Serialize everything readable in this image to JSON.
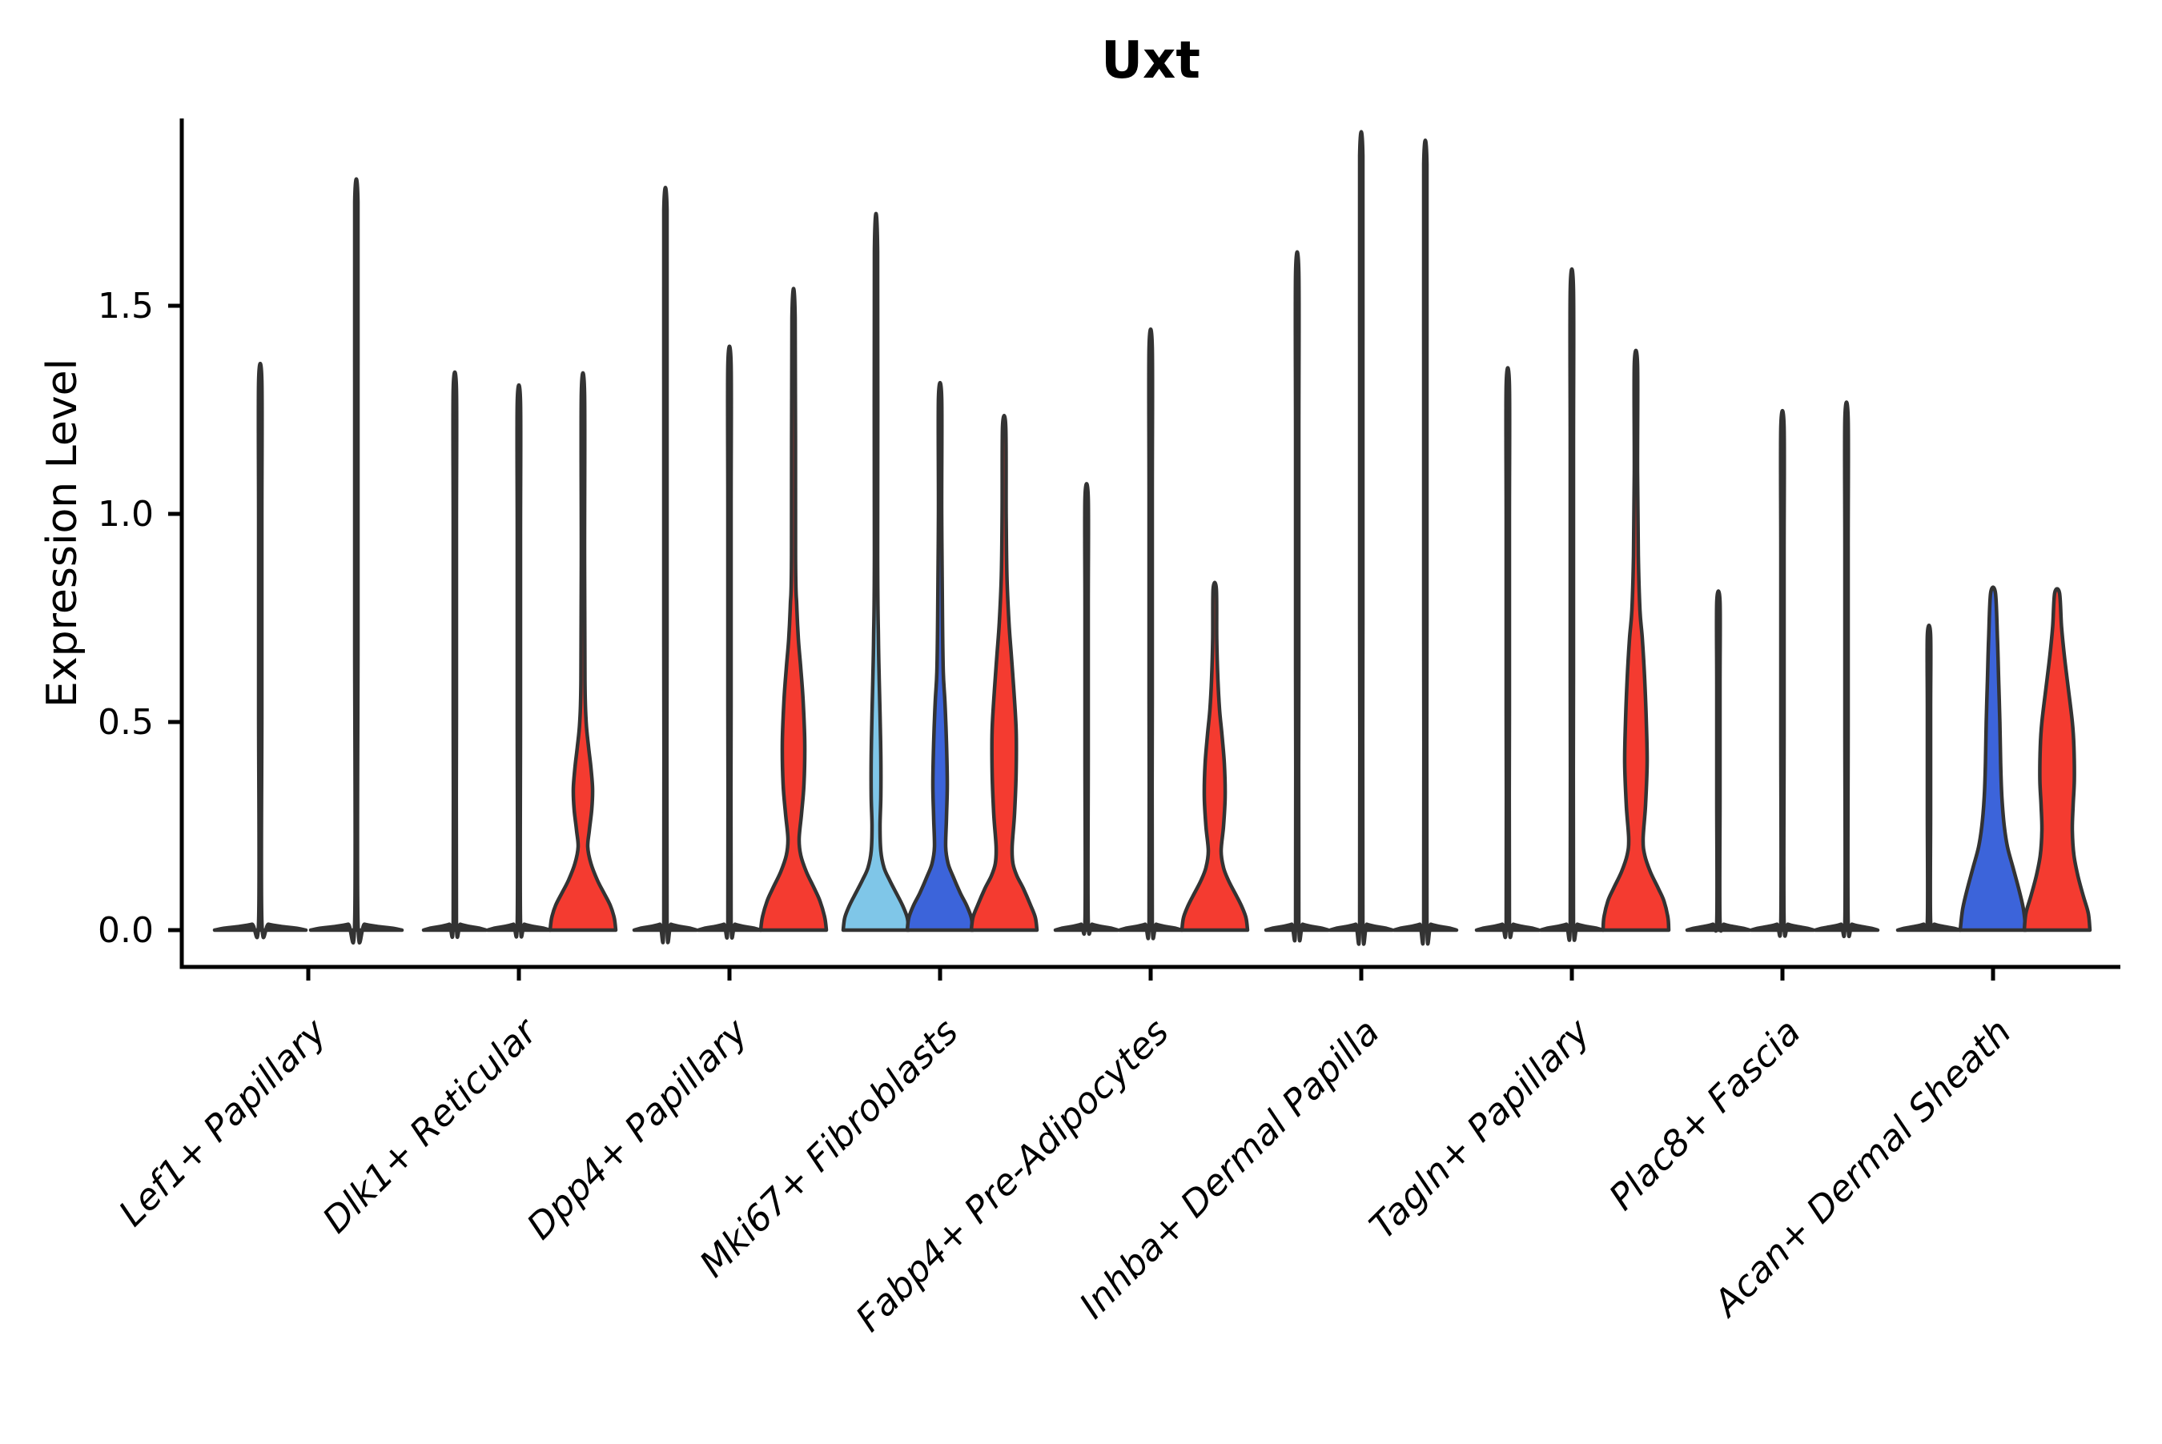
{
  "title": "Uxt",
  "ylabel": "Expression Level",
  "colors": {
    "light_blue": "#7FC6E8",
    "blue": "#3C64DA",
    "red": "#F43B30",
    "outline": "#333333",
    "axis": "#000000",
    "background": "#FFFFFF"
  },
  "chart_data": {
    "type": "violin",
    "title": "Uxt",
    "xlabel": "",
    "ylabel": "Expression Level",
    "ylim": [
      -0.09,
      1.95
    ],
    "grid": false,
    "legend": "none",
    "yticks": [
      {
        "value": 0.0,
        "label": "0.0"
      },
      {
        "value": 0.5,
        "label": "0.5"
      },
      {
        "value": 1.0,
        "label": "1.0"
      },
      {
        "value": 1.5,
        "label": "1.5"
      }
    ],
    "groups": [
      {
        "label": "Lef1+ Papillary",
        "violins": [
          {
            "color": "light_blue",
            "shape": "spike",
            "max": 1.32,
            "offset": -60,
            "base_halfwidth": 57
          },
          {
            "color": "red",
            "shape": "spike",
            "max": 1.75,
            "offset": 60,
            "base_halfwidth": 57
          }
        ]
      },
      {
        "label": "Dlk1+ Reticular",
        "violins": [
          {
            "color": "light_blue",
            "shape": "spike",
            "max": 1.3,
            "offset": -80,
            "base_halfwidth": 39
          },
          {
            "color": "blue",
            "shape": "spike",
            "max": 1.27,
            "offset": 0,
            "base_halfwidth": 39
          },
          {
            "color": "red",
            "shape": "profile",
            "max": 1.29,
            "offset": 80,
            "profile": [
              [
                0,
                41
              ],
              [
                0.03,
                39
              ],
              [
                0.06,
                34
              ],
              [
                0.09,
                26
              ],
              [
                0.12,
                18
              ],
              [
                0.16,
                10
              ],
              [
                0.2,
                6
              ],
              [
                0.24,
                8
              ],
              [
                0.29,
                11
              ],
              [
                0.34,
                12
              ],
              [
                0.39,
                10
              ],
              [
                0.44,
                7
              ],
              [
                0.5,
                4
              ],
              [
                0.6,
                2.5
              ],
              [
                0.9,
                2
              ],
              [
                1.29,
                2
              ]
            ]
          }
        ]
      },
      {
        "label": "Dpp4+ Papillary",
        "violins": [
          {
            "color": "light_blue",
            "shape": "spike",
            "max": 1.73,
            "offset": -80,
            "base_halfwidth": 39
          },
          {
            "color": "blue",
            "shape": "spike",
            "max": 1.36,
            "offset": 0,
            "base_halfwidth": 39
          },
          {
            "color": "red",
            "shape": "profile",
            "max": 1.47,
            "offset": 80,
            "profile": [
              [
                0,
                41
              ],
              [
                0.03,
                39
              ],
              [
                0.07,
                33
              ],
              [
                0.1,
                26
              ],
              [
                0.14,
                16
              ],
              [
                0.18,
                9
              ],
              [
                0.22,
                7
              ],
              [
                0.28,
                10
              ],
              [
                0.35,
                13
              ],
              [
                0.45,
                14
              ],
              [
                0.55,
                12
              ],
              [
                0.63,
                9
              ],
              [
                0.7,
                6
              ],
              [
                0.78,
                4
              ],
              [
                0.9,
                2.5
              ],
              [
                1.47,
                2
              ]
            ]
          }
        ]
      },
      {
        "label": "Mki67+ Fibroblasts",
        "violins": [
          {
            "color": "light_blue",
            "shape": "profile",
            "max": 1.63,
            "offset": -80,
            "profile": [
              [
                0,
                41
              ],
              [
                0.03,
                39
              ],
              [
                0.06,
                33
              ],
              [
                0.09,
                25
              ],
              [
                0.12,
                17
              ],
              [
                0.15,
                10
              ],
              [
                0.19,
                6
              ],
              [
                0.25,
                5
              ],
              [
                0.32,
                6
              ],
              [
                0.42,
                6
              ],
              [
                0.52,
                5
              ],
              [
                0.6,
                4
              ],
              [
                0.7,
                3
              ],
              [
                0.9,
                2
              ],
              [
                1.63,
                2
              ]
            ]
          },
          {
            "color": "blue",
            "shape": "profile",
            "max": 1.28,
            "offset": 0,
            "profile": [
              [
                0,
                41
              ],
              [
                0.03,
                39
              ],
              [
                0.06,
                33
              ],
              [
                0.09,
                25
              ],
              [
                0.13,
                16
              ],
              [
                0.16,
                10
              ],
              [
                0.2,
                7
              ],
              [
                0.27,
                8
              ],
              [
                0.35,
                9
              ],
              [
                0.45,
                8
              ],
              [
                0.55,
                6
              ],
              [
                0.62,
                4
              ],
              [
                0.75,
                3
              ],
              [
                1.0,
                2
              ],
              [
                1.28,
                2
              ]
            ]
          },
          {
            "color": "red",
            "shape": "profile",
            "max": 1.21,
            "offset": 80,
            "profile": [
              [
                0,
                41
              ],
              [
                0.03,
                39
              ],
              [
                0.06,
                33
              ],
              [
                0.1,
                24
              ],
              [
                0.13,
                16
              ],
              [
                0.16,
                11
              ],
              [
                0.2,
                10
              ],
              [
                0.28,
                13
              ],
              [
                0.38,
                15
              ],
              [
                0.48,
                15
              ],
              [
                0.58,
                12
              ],
              [
                0.66,
                9
              ],
              [
                0.74,
                6
              ],
              [
                0.85,
                3.5
              ],
              [
                1.0,
                2.5
              ],
              [
                1.21,
                2
              ]
            ]
          }
        ]
      },
      {
        "label": "Fabp4+ Pre-Adipocytes",
        "violins": [
          {
            "color": "light_blue",
            "shape": "spike",
            "max": 1.04,
            "offset": -80,
            "base_halfwidth": 39
          },
          {
            "color": "blue",
            "shape": "spike",
            "max": 1.4,
            "offset": 0,
            "base_halfwidth": 39
          },
          {
            "color": "red",
            "shape": "profile",
            "max": 0.82,
            "offset": 80,
            "profile": [
              [
                0,
                41
              ],
              [
                0.03,
                39
              ],
              [
                0.06,
                33
              ],
              [
                0.09,
                25
              ],
              [
                0.12,
                17
              ],
              [
                0.15,
                11
              ],
              [
                0.19,
                8
              ],
              [
                0.25,
                11
              ],
              [
                0.32,
                13
              ],
              [
                0.4,
                12
              ],
              [
                0.47,
                9
              ],
              [
                0.53,
                6
              ],
              [
                0.6,
                4
              ],
              [
                0.7,
                2.5
              ],
              [
                0.82,
                2
              ]
            ]
          }
        ]
      },
      {
        "label": "Inhba+ Dermal Papilla",
        "violins": [
          {
            "color": "light_blue",
            "shape": "spike",
            "max": 1.58,
            "offset": -80,
            "base_halfwidth": 39
          },
          {
            "color": "blue",
            "shape": "spike",
            "max": 1.86,
            "offset": 0,
            "base_halfwidth": 39
          },
          {
            "color": "red",
            "shape": "spike",
            "max": 1.84,
            "offset": 80,
            "base_halfwidth": 39
          }
        ]
      },
      {
        "label": "Tagln+ Papillary",
        "violins": [
          {
            "color": "light_blue",
            "shape": "spike",
            "max": 1.31,
            "offset": -80,
            "base_halfwidth": 39
          },
          {
            "color": "blue",
            "shape": "spike",
            "max": 1.54,
            "offset": 0,
            "base_halfwidth": 39
          },
          {
            "color": "red",
            "shape": "profile",
            "max": 1.36,
            "offset": 80,
            "profile": [
              [
                0,
                41
              ],
              [
                0.03,
                40
              ],
              [
                0.07,
                35
              ],
              [
                0.1,
                28
              ],
              [
                0.14,
                18
              ],
              [
                0.18,
                11
              ],
              [
                0.22,
                9
              ],
              [
                0.3,
                12
              ],
              [
                0.4,
                14
              ],
              [
                0.5,
                13
              ],
              [
                0.6,
                11
              ],
              [
                0.7,
                8
              ],
              [
                0.77,
                5
              ],
              [
                0.9,
                3
              ],
              [
                1.1,
                2
              ],
              [
                1.36,
                2
              ]
            ]
          }
        ]
      },
      {
        "label": "Plac8+ Fascia",
        "violins": [
          {
            "color": "light_blue",
            "shape": "spike",
            "max": 0.79,
            "offset": -80,
            "base_halfwidth": 39
          },
          {
            "color": "blue",
            "shape": "spike",
            "max": 1.21,
            "offset": 0,
            "base_halfwidth": 39
          },
          {
            "color": "red",
            "shape": "spike",
            "max": 1.23,
            "offset": 80,
            "base_halfwidth": 39
          }
        ]
      },
      {
        "label": "Acan+ Dermal Sheath",
        "violins": [
          {
            "color": "light_blue",
            "shape": "spike",
            "max": 0.71,
            "offset": -80,
            "base_halfwidth": 39
          },
          {
            "color": "blue",
            "shape": "profile",
            "max": 0.81,
            "offset": 0,
            "profile": [
              [
                0,
                41
              ],
              [
                0.05,
                38
              ],
              [
                0.1,
                32
              ],
              [
                0.15,
                25
              ],
              [
                0.2,
                18
              ],
              [
                0.25,
                14
              ],
              [
                0.32,
                11
              ],
              [
                0.4,
                9.5
              ],
              [
                0.5,
                8.5
              ],
              [
                0.6,
                7
              ],
              [
                0.7,
                5.5
              ],
              [
                0.81,
                3
              ]
            ]
          },
          {
            "color": "red",
            "shape": "profile",
            "max": 0.81,
            "offset": 80,
            "profile": [
              [
                0,
                41
              ],
              [
                0.04,
                39
              ],
              [
                0.08,
                33
              ],
              [
                0.13,
                26
              ],
              [
                0.18,
                21
              ],
              [
                0.24,
                19
              ],
              [
                0.3,
                20
              ],
              [
                0.36,
                21.5
              ],
              [
                0.44,
                21
              ],
              [
                0.5,
                19
              ],
              [
                0.58,
                14
              ],
              [
                0.66,
                9
              ],
              [
                0.73,
                5.5
              ],
              [
                0.81,
                3
              ]
            ]
          }
        ]
      }
    ]
  }
}
